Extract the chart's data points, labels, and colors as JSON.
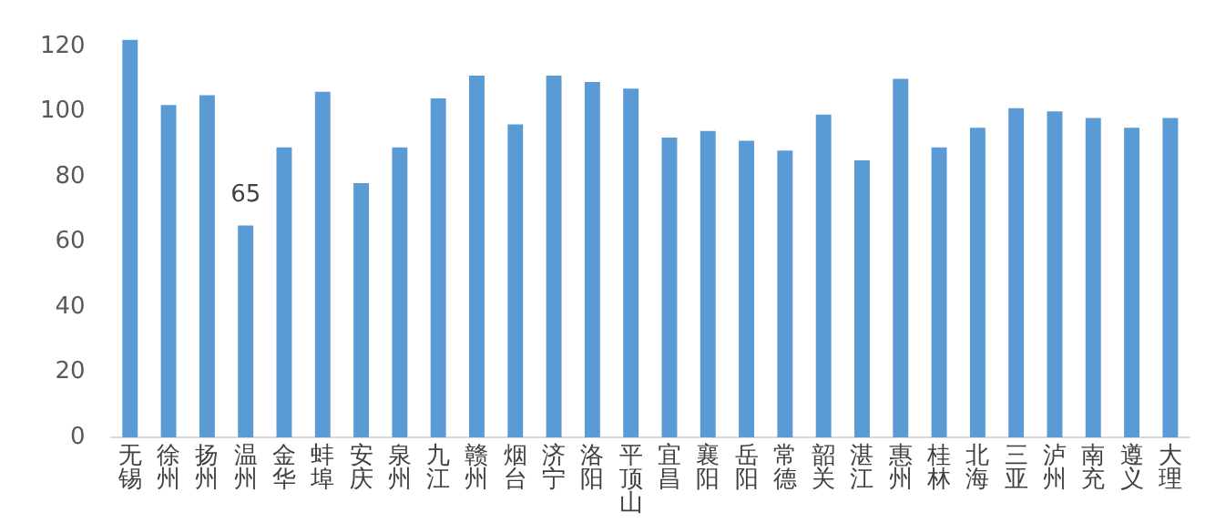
{
  "chart_data": {
    "type": "bar",
    "categories": [
      "无锡",
      "徐州",
      "扬州",
      "温州",
      "金华",
      "蚌埠",
      "安庆",
      "泉州",
      "九江",
      "赣州",
      "烟台",
      "济宁",
      "洛阳",
      "平顶山",
      "宜昌",
      "襄阳",
      "岳阳",
      "常德",
      "韶关",
      "湛江",
      "惠州",
      "桂林",
      "北海",
      "三亚",
      "泸州",
      "南充",
      "遵义",
      "大理"
    ],
    "values": [
      122,
      102,
      105,
      65,
      89,
      106,
      78,
      89,
      104,
      111,
      96,
      111,
      109,
      107,
      92,
      94,
      91,
      88,
      99,
      85,
      110,
      89,
      95,
      101,
      100,
      98,
      95,
      98
    ],
    "value_labels": [
      null,
      null,
      null,
      "65",
      null,
      null,
      null,
      null,
      null,
      null,
      null,
      null,
      null,
      null,
      null,
      null,
      null,
      null,
      null,
      null,
      null,
      null,
      null,
      null,
      null,
      null,
      null,
      null
    ],
    "color": "#5b9bd5",
    "ylim": [
      0,
      122
    ],
    "yticks": [
      0,
      20,
      40,
      60,
      80,
      100,
      120
    ],
    "grid": false,
    "legend": false
  }
}
